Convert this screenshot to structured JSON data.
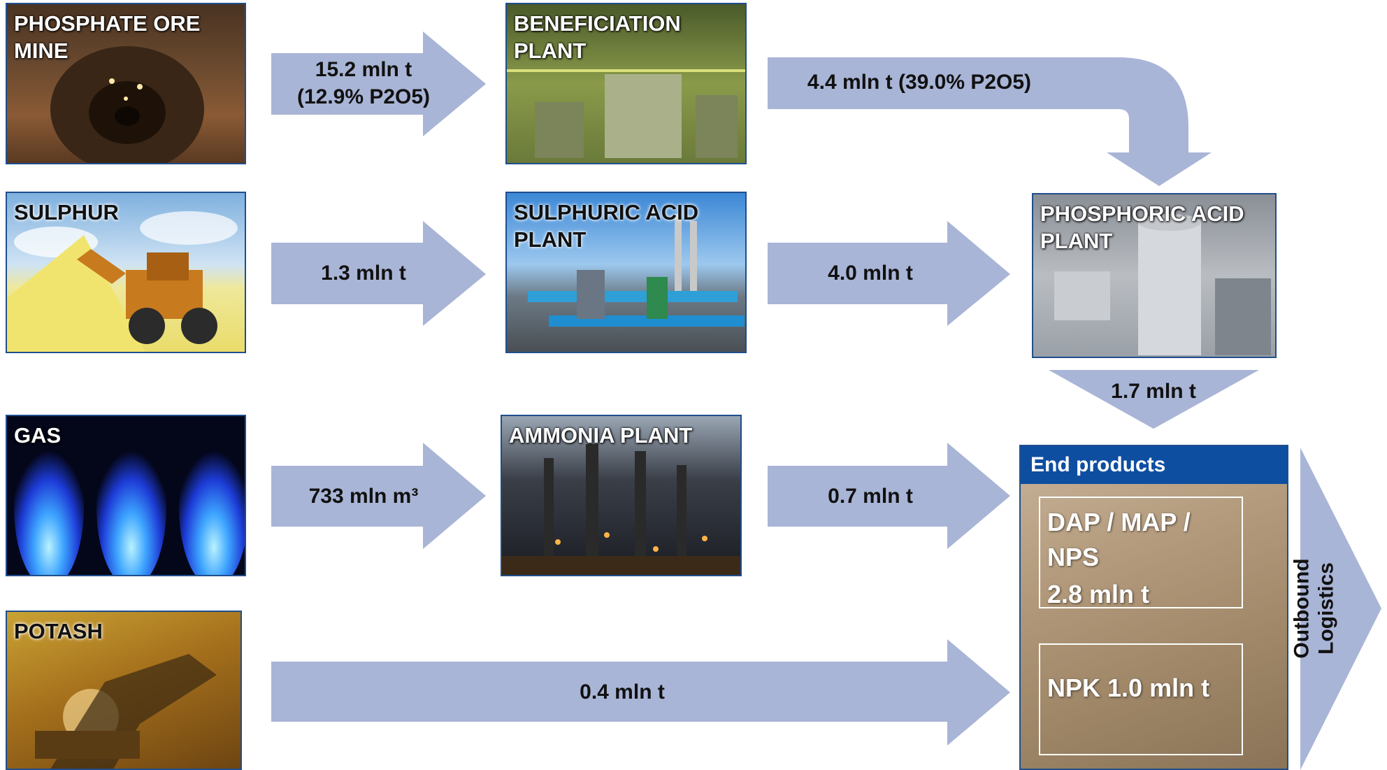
{
  "sources": [
    {
      "id": "phosphate",
      "label": "PHOSPHATE ORE\nMINE"
    },
    {
      "id": "sulphur",
      "label": "SULPHUR"
    },
    {
      "id": "gas",
      "label": "GAS"
    },
    {
      "id": "potash",
      "label": "POTASH"
    }
  ],
  "plants": [
    {
      "id": "beneficiation",
      "label": "BENEFICIATION\nPLANT"
    },
    {
      "id": "sulphuric",
      "label": "SULPHURIC ACID\nPLANT"
    },
    {
      "id": "ammonia",
      "label": "AMMONIA PLANT"
    },
    {
      "id": "phosphoric",
      "label": "PHOSPHORIC ACID\nPLANT"
    }
  ],
  "flows": {
    "ore_to_beneficiation": "15.2 mln t\n(12.9% P2O5)",
    "beneficiation_to_phosphoric": "4.4 mln t (39.0% P2O5)",
    "sulphur_to_sulphuric": "1.3 mln t",
    "sulphuric_to_phosphoric": "4.0 mln t",
    "phosphoric_to_end": "1.7 mln t",
    "gas_to_ammonia": "733 mln m³",
    "ammonia_to_end": "0.7 mln t",
    "potash_to_end": "0.4 mln t"
  },
  "end_products": {
    "title": "End products",
    "items": [
      {
        "name": "DAP / MAP /\nNPS",
        "amount": "2.8 mln t"
      },
      {
        "name": "NPK",
        "amount": "1.0 mln t"
      }
    ]
  },
  "outbound": "Outbound\nLogistics",
  "colors": {
    "arrow": "#a9b5d6",
    "border": "#1f4e8c",
    "header": "#0e4ea1"
  }
}
